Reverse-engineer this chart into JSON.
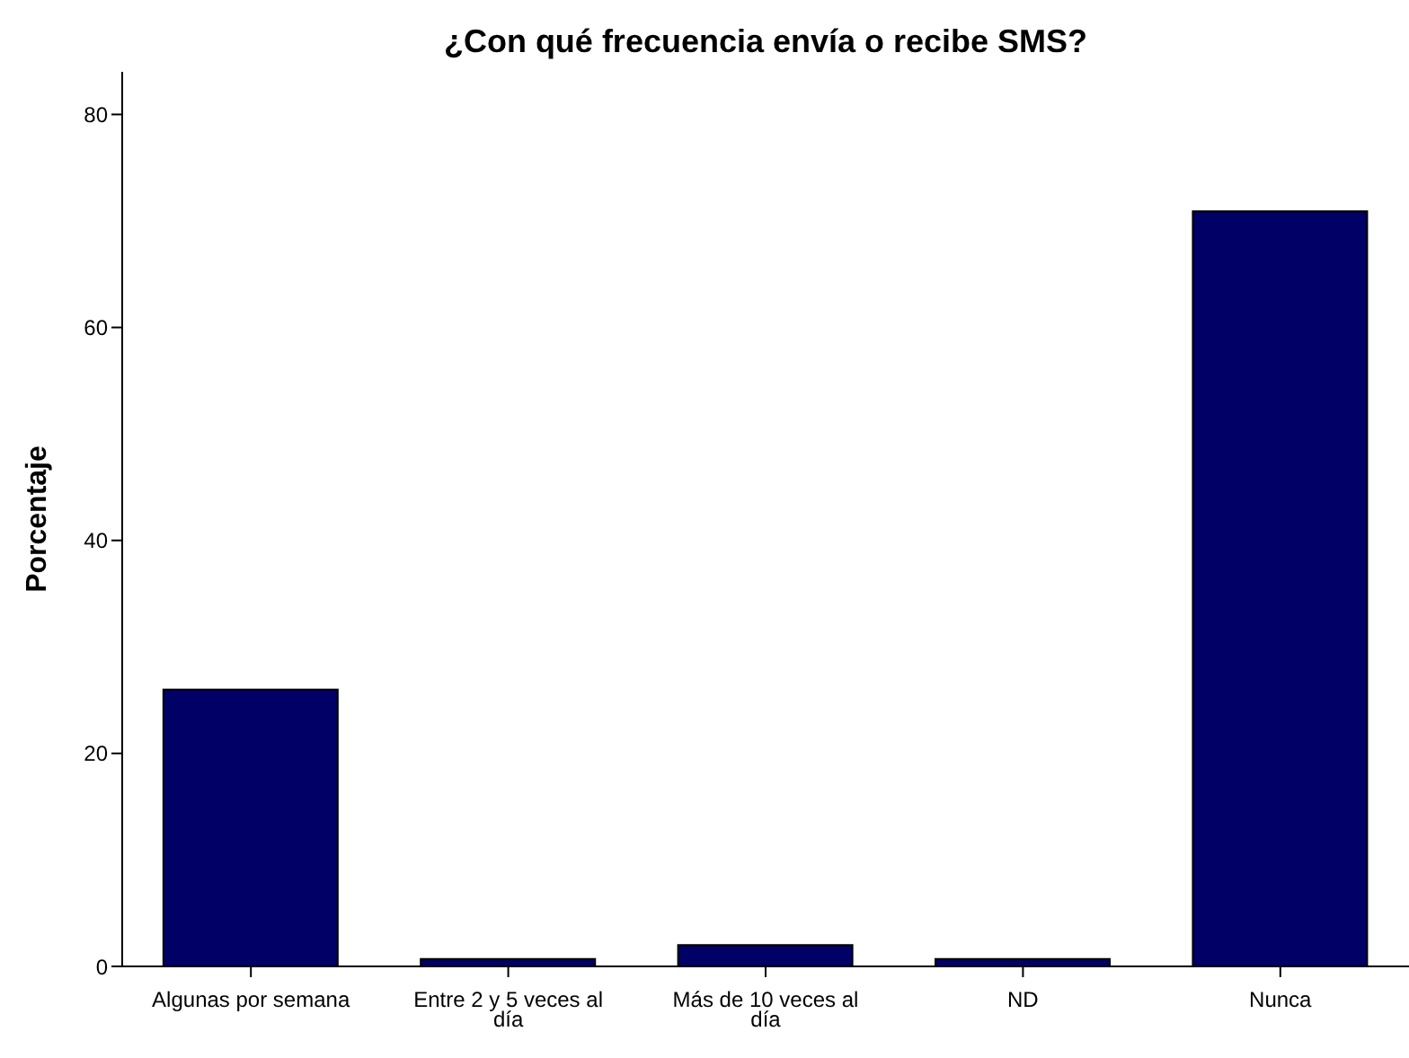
{
  "chart_data": {
    "type": "bar",
    "title": "¿Con qué frecuencia envía o recibe SMS?",
    "ylabel": "Porcentaje",
    "categories": [
      "Algunas por semana",
      "Entre 2 y 5 veces al día",
      "Más de 10 veces al día",
      "ND",
      "Nunca"
    ],
    "values": [
      26.0,
      0.7,
      2.0,
      0.7,
      70.9
    ],
    "color": "#000066",
    "ylim": [
      0,
      84
    ],
    "yticks": [
      0,
      20,
      40,
      60,
      80
    ],
    "grid": false,
    "legend": false
  }
}
